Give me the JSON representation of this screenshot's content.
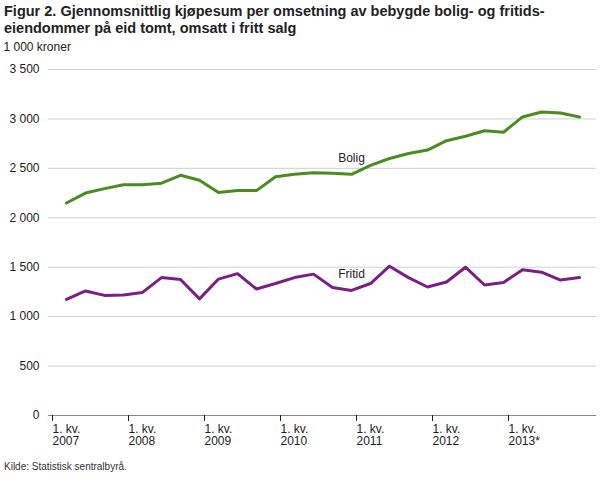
{
  "chart_data": {
    "type": "line",
    "title": "Figur 2. Gjennomsnittlig kjøpesum per omsetning av bebygde bolig- og fritids-eiendommer på eid tomt, omsatt i fritt salg",
    "ylabel": "1 000 kroner",
    "source": "Kilde: Statistisk sentralbyrå.",
    "categories": [
      "1. kv.\n2007",
      null,
      null,
      null,
      "1. kv.\n2008",
      null,
      null,
      null,
      "1. kv.\n2009",
      null,
      null,
      null,
      "1. kv.\n2010",
      null,
      null,
      null,
      "1. kv.\n2011",
      null,
      null,
      null,
      "1. kv.\n2012",
      null,
      null,
      null,
      "1. kv.\n2013*",
      null,
      null,
      null
    ],
    "series": [
      {
        "name": "Bolig",
        "color": "#4b8c1e",
        "values": [
          2150,
          2250,
          2295,
          2335,
          2335,
          2350,
          2430,
          2380,
          2255,
          2275,
          2275,
          2415,
          2440,
          2455,
          2450,
          2440,
          2530,
          2600,
          2650,
          2685,
          2780,
          2825,
          2880,
          2865,
          3020,
          3070,
          3060,
          3020
        ]
      },
      {
        "name": "Fritid",
        "color": "#7a2082",
        "values": [
          1175,
          1260,
          1215,
          1220,
          1245,
          1395,
          1375,
          1180,
          1380,
          1435,
          1280,
          1335,
          1395,
          1430,
          1295,
          1265,
          1335,
          1510,
          1395,
          1300,
          1350,
          1500,
          1320,
          1345,
          1475,
          1450,
          1370,
          1395
        ]
      }
    ],
    "ylim": [
      0,
      3500
    ],
    "yticks": [
      0,
      500,
      {
        "value": 1000,
        "label": "1 000"
      },
      {
        "value": 1500,
        "label": "1 500"
      },
      {
        "value": 2000,
        "label": "2 000"
      },
      {
        "value": 2500,
        "label": "2 500"
      },
      {
        "value": 3000,
        "label": "3 000"
      },
      {
        "value": 3500,
        "label": "3 500"
      }
    ],
    "grid": true
  }
}
